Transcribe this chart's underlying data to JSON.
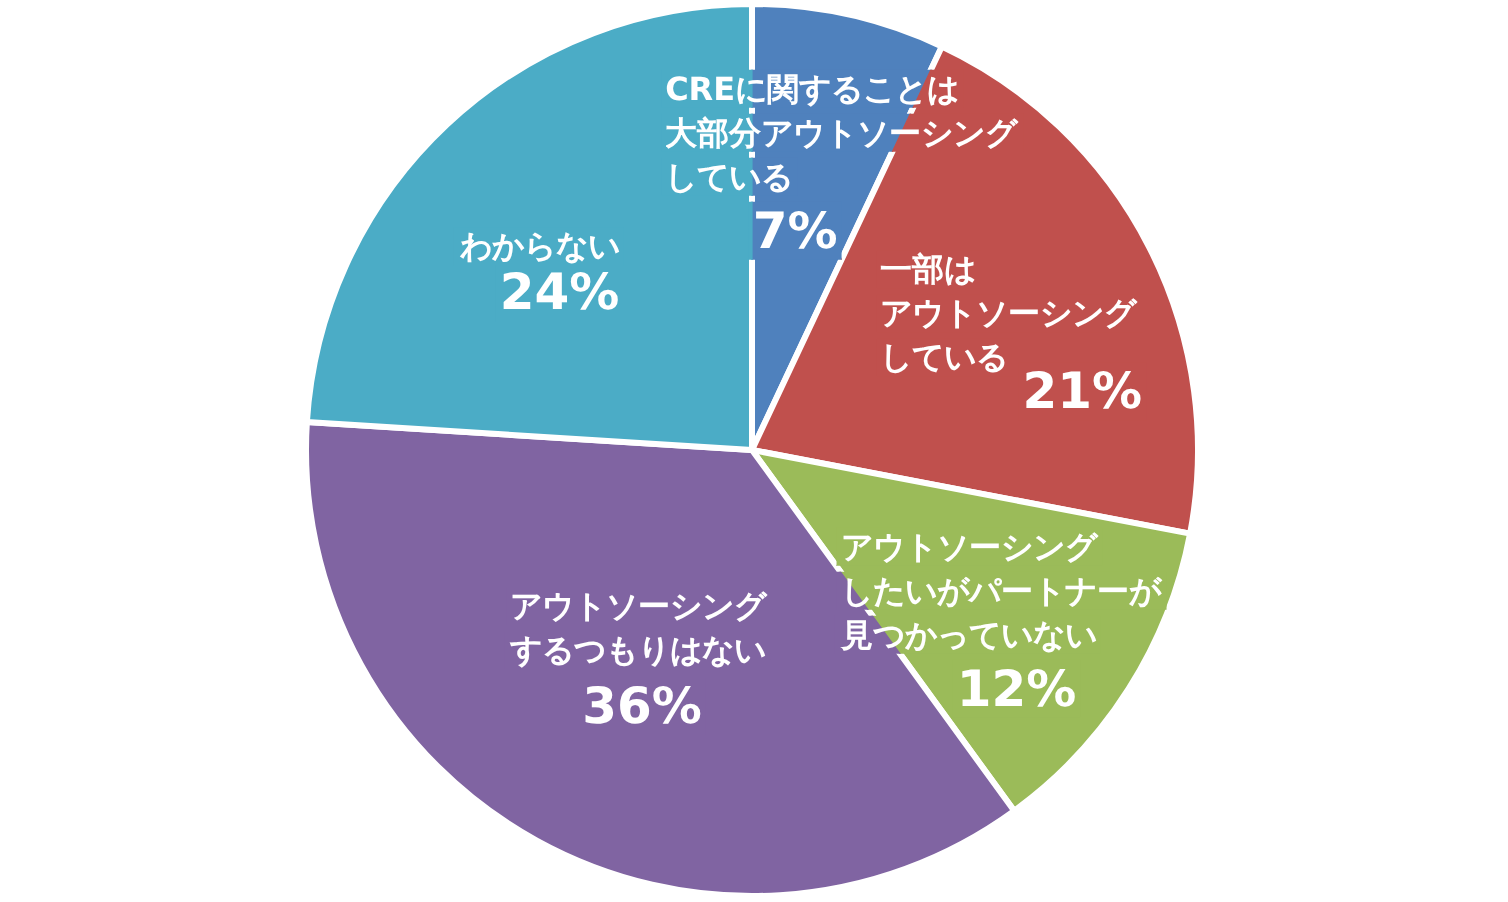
{
  "chart_data": {
    "type": "pie",
    "categories": [
      "CREに関することは大部分アウトソーシングしている",
      "一部はアウトソーシングしている",
      "アウトソーシングしたいがパートナーが見つかっていない",
      "アウトソーシングするつもりはない",
      "わからない"
    ],
    "values": [
      7,
      21,
      12,
      36,
      24
    ],
    "colors": [
      "#4f81bd",
      "#c0504d",
      "#9bbb59",
      "#8064a2",
      "#4bacc6"
    ],
    "value_labels": [
      "7%",
      "21%",
      "12%",
      "36%",
      "24%"
    ]
  }
}
